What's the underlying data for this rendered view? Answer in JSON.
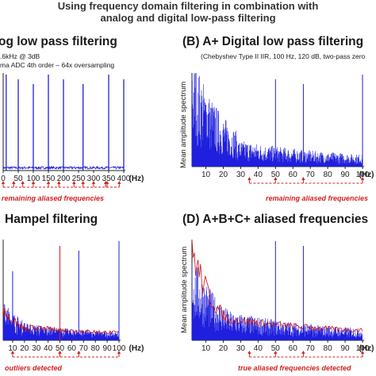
{
  "figure": {
    "title_line1": "Using frequency domain filtering in combination with",
    "title_line2": "analog and digital low-pass filtering"
  },
  "colors": {
    "spectrum": "#1f1fdd",
    "marker": "#d32222",
    "trace": "#cc1111",
    "axis": "#222222"
  },
  "panels": [
    {
      "id": "A",
      "title": "og low pass filtering",
      "sub1": ".6kHz @ 3dB",
      "sub2": "ma ADC 4th order – 64x oversampling",
      "ylabel": "",
      "annotation": "remaining aliased frequencies"
    },
    {
      "id": "B",
      "title": "(B)  A+ Digital low pass filtering",
      "sub1": "(Chebyshev Type II IIR, 100 Hz, 120 dB, two-pass zero",
      "sub2": "",
      "ylabel": "Mean amplitude spectrum",
      "annotation": "remaining aliased frequencies"
    },
    {
      "id": "C",
      "title": "Hampel filtering",
      "sub1": "",
      "sub2": "",
      "ylabel": "",
      "annotation": "outliers detected"
    },
    {
      "id": "D",
      "title": "(D)  A+B+C+ aliased frequencies",
      "sub1": "",
      "sub2": "",
      "ylabel": "Mean amplitude spectrum",
      "annotation": "true aliased frequencies detected"
    }
  ],
  "chart_data": [
    {
      "type": "line",
      "panel": "A",
      "xlabel": "(Hz)",
      "xticks": [
        0,
        50,
        100,
        150,
        200,
        250,
        300,
        350,
        400
      ],
      "tick_labels": [
        "0",
        "50",
        "100",
        "150",
        "200",
        "250",
        "300",
        "350",
        "400"
      ],
      "xlim": [
        0,
        400
      ],
      "peaks_hz": [
        10,
        50,
        100,
        150,
        200,
        265,
        350,
        400
      ],
      "aliased_markers_hz": [
        0,
        35,
        65,
        100,
        150,
        185,
        235,
        265,
        300,
        340,
        345,
        385
      ]
    },
    {
      "type": "line",
      "panel": "B",
      "xlabel": "(Hz)",
      "xticks": [
        10,
        20,
        30,
        40,
        50,
        60,
        70,
        80,
        90,
        100
      ],
      "tick_labels": [
        "10",
        "20",
        "30",
        "40",
        "50",
        "60",
        "70",
        "80",
        "90",
        "100"
      ],
      "xlim": [
        2,
        100
      ],
      "peaks_hz": [
        10,
        50,
        66,
        100
      ],
      "aliased_markers_hz": [
        35,
        50,
        66,
        100
      ]
    },
    {
      "type": "line",
      "panel": "C",
      "xlabel": "(Hz)",
      "xticks": [
        10,
        20,
        30,
        40,
        50,
        60,
        70,
        80,
        90,
        100
      ],
      "tick_labels": [
        "10",
        "20",
        "30",
        "40",
        "50",
        "60",
        "70",
        "80",
        "90",
        "100"
      ],
      "xlim": [
        2,
        100
      ],
      "peaks_hz": [
        10,
        50,
        66,
        100
      ],
      "outlier_markers_hz": [
        10,
        50,
        66,
        100
      ]
    },
    {
      "type": "line",
      "panel": "D",
      "xlabel": "(Hz)",
      "xticks": [
        10,
        20,
        30,
        40,
        50,
        60,
        70,
        80,
        90,
        100
      ],
      "tick_labels": [
        "10",
        "20",
        "30",
        "40",
        "50",
        "60",
        "70",
        "80",
        "90",
        "100"
      ],
      "xlim": [
        2,
        100
      ],
      "peaks_hz": [
        50,
        66
      ],
      "aliased_markers_hz": [
        35,
        50,
        66,
        100
      ]
    }
  ]
}
